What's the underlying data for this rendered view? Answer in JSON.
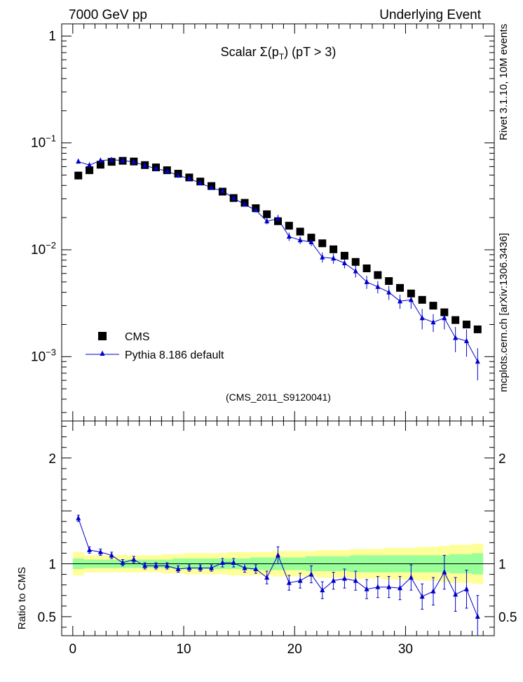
{
  "header": {
    "left": "7000 GeV pp",
    "right": "Underlying Event"
  },
  "side_labels": {
    "rivet": "Rivet 3.1.10,  10M events",
    "mcplots": "mcplots.cern.ch [arXiv:1306.3436]"
  },
  "colors": {
    "cms": "#000000",
    "pythia": "#0000cc",
    "band_yellow": "#ffff99",
    "band_green": "#99ff99",
    "analysis_text": "#999999"
  },
  "chart_data": [
    {
      "type": "scatter",
      "title": {
        "prefix": "Scalar ",
        "sigma": "Σ(p",
        "sub": "T",
        "suffix": ") (pT >  3)"
      },
      "analysis_id": "(CMS_2011_S9120041)",
      "yscale": "log",
      "ylim": [
        0.00025,
        1.3
      ],
      "xlim": [
        -1,
        38
      ],
      "ytick_labels": [
        {
          "value": 1,
          "base": "1",
          "exp": ""
        },
        {
          "value": 0.1,
          "base": "10",
          "exp": "−1"
        },
        {
          "value": 0.01,
          "base": "10",
          "exp": "−2"
        },
        {
          "value": 0.001,
          "base": "10",
          "exp": "−3"
        }
      ],
      "legend": {
        "position": "bottom-left",
        "cms": "CMS",
        "pythia": "Pythia 8.186 default"
      },
      "x": [
        0.5,
        1.5,
        2.5,
        3.5,
        4.5,
        5.5,
        6.5,
        7.5,
        8.5,
        9.5,
        10.5,
        11.5,
        12.5,
        13.5,
        14.5,
        15.5,
        16.5,
        17.5,
        18.5,
        19.5,
        20.5,
        21.5,
        22.5,
        23.5,
        24.5,
        25.5,
        26.5,
        27.5,
        28.5,
        29.5,
        30.5,
        31.5,
        32.5,
        33.5,
        34.5,
        35.5,
        36.5
      ],
      "series": [
        {
          "name": "CMS",
          "marker": "square",
          "values": [
            0.0495,
            0.0555,
            0.0625,
            0.0665,
            0.068,
            0.067,
            0.062,
            0.059,
            0.0555,
            0.0515,
            0.0475,
            0.0435,
            0.0395,
            0.035,
            0.0305,
            0.0275,
            0.0245,
            0.0215,
            0.0185,
            0.0168,
            0.0148,
            0.013,
            0.0115,
            0.0101,
            0.0088,
            0.0077,
            0.0067,
            0.0058,
            0.0051,
            0.0044,
            0.0039,
            0.0034,
            0.003,
            0.0026,
            0.0022,
            0.002,
            0.0018
          ]
        },
        {
          "name": "Pythia 8.186 default",
          "marker": "triangle",
          "values": [
            0.067,
            0.062,
            0.0685,
            0.0695,
            0.0685,
            0.0665,
            0.0615,
            0.0575,
            0.0545,
            0.0495,
            0.0465,
            0.042,
            0.038,
            0.0355,
            0.0305,
            0.0265,
            0.0235,
            0.0185,
            0.0195,
            0.0133,
            0.0123,
            0.0118,
            0.0085,
            0.0083,
            0.0075,
            0.0063,
            0.005,
            0.0045,
            0.004,
            0.0033,
            0.0034,
            0.0023,
            0.0021,
            0.0023,
            0.0015,
            0.0014,
            0.0009
          ],
          "errors": [
            0.001,
            0.001,
            0.001,
            0.001,
            0.001,
            0.001,
            0.001,
            0.001,
            0.001,
            0.001,
            0.001,
            0.001,
            0.0008,
            0.0008,
            0.0007,
            0.0007,
            0.0007,
            0.0012,
            0.0018,
            0.0012,
            0.001,
            0.001,
            0.0009,
            0.0009,
            0.0008,
            0.0008,
            0.0007,
            0.0006,
            0.0006,
            0.0005,
            0.0006,
            0.0005,
            0.0004,
            0.0005,
            0.0004,
            0.0004,
            0.0003
          ]
        }
      ]
    },
    {
      "type": "scatter",
      "ylabel": "Ratio to CMS",
      "ylim": [
        0.32,
        2.35
      ],
      "xlim": [
        -1,
        38
      ],
      "yticks": [
        0.5,
        1,
        2
      ],
      "ytick_labels": [
        "0.5",
        "1",
        "2"
      ],
      "xticks": [
        0,
        10,
        20,
        30
      ],
      "xtick_labels": [
        "0",
        "10",
        "20",
        "30"
      ],
      "bands": {
        "yellow_halfwidth": [
          0.11,
          0.08,
          0.08,
          0.08,
          0.08,
          0.08,
          0.08,
          0.08,
          0.09,
          0.09,
          0.1,
          0.1,
          0.1,
          0.1,
          0.11,
          0.11,
          0.11,
          0.11,
          0.12,
          0.12,
          0.12,
          0.12,
          0.13,
          0.13,
          0.13,
          0.14,
          0.14,
          0.14,
          0.15,
          0.15,
          0.15,
          0.16,
          0.16,
          0.17,
          0.18,
          0.18,
          0.19
        ],
        "green_halfwidth": [
          0.05,
          0.04,
          0.04,
          0.04,
          0.04,
          0.04,
          0.04,
          0.04,
          0.04,
          0.05,
          0.05,
          0.05,
          0.05,
          0.05,
          0.05,
          0.05,
          0.06,
          0.06,
          0.06,
          0.06,
          0.06,
          0.07,
          0.07,
          0.07,
          0.07,
          0.08,
          0.08,
          0.08,
          0.08,
          0.08,
          0.08,
          0.08,
          0.08,
          0.08,
          0.09,
          0.09,
          0.1
        ]
      },
      "series": [
        {
          "name": "Pythia 8.186 default",
          "values": [
            1.43,
            1.13,
            1.11,
            1.08,
            1.01,
            1.04,
            0.98,
            0.98,
            0.98,
            0.95,
            0.96,
            0.96,
            0.96,
            1.01,
            1.01,
            0.96,
            0.95,
            0.87,
            1.08,
            0.82,
            0.84,
            0.9,
            0.75,
            0.84,
            0.86,
            0.84,
            0.76,
            0.78,
            0.78,
            0.77,
            0.87,
            0.69,
            0.74,
            0.92,
            0.71,
            0.76,
            0.5
          ],
          "errors": [
            0.03,
            0.03,
            0.03,
            0.03,
            0.03,
            0.03,
            0.03,
            0.03,
            0.03,
            0.03,
            0.03,
            0.03,
            0.03,
            0.04,
            0.04,
            0.04,
            0.04,
            0.06,
            0.08,
            0.07,
            0.07,
            0.08,
            0.08,
            0.08,
            0.09,
            0.09,
            0.09,
            0.1,
            0.1,
            0.11,
            0.12,
            0.12,
            0.13,
            0.16,
            0.16,
            0.18,
            0.2
          ]
        }
      ]
    }
  ]
}
